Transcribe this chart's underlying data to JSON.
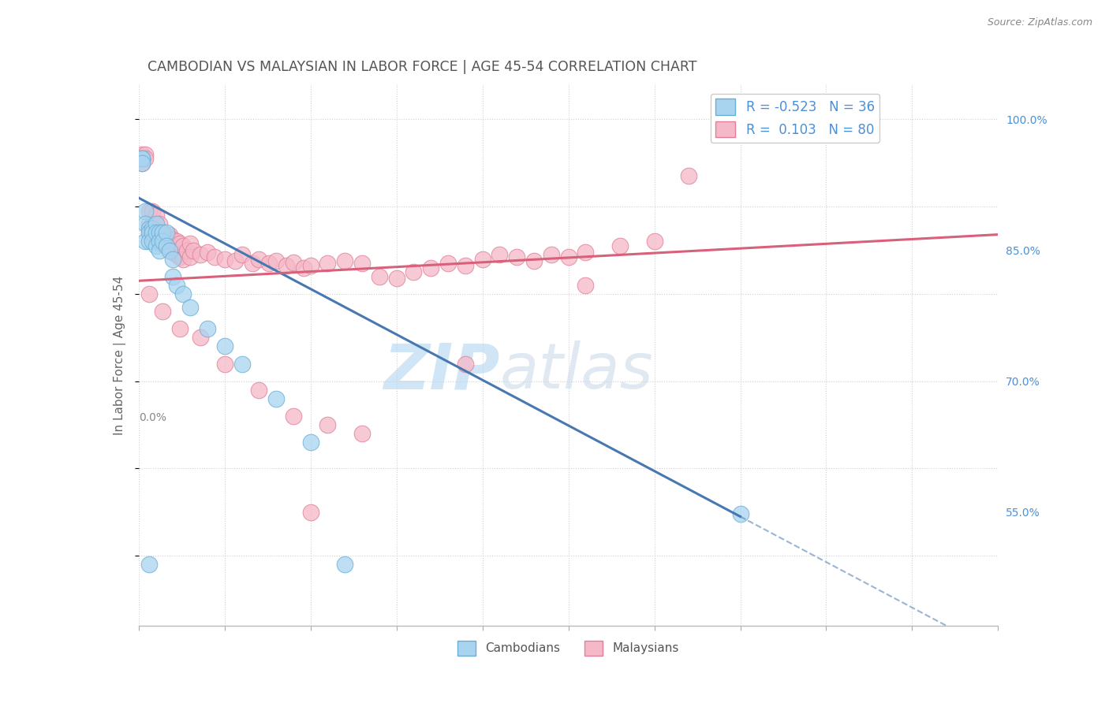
{
  "title": "CAMBODIAN VS MALAYSIAN IN LABOR FORCE | AGE 45-54 CORRELATION CHART",
  "source": "Source: ZipAtlas.com",
  "ylabel": "In Labor Force | Age 45-54",
  "xlim": [
    0.0,
    0.25
  ],
  "ylim": [
    0.42,
    1.04
  ],
  "right_yticks": [
    1.0,
    0.85,
    0.7,
    0.55
  ],
  "right_ytick_labels": [
    "100.0%",
    "85.0%",
    "70.0%",
    "55.0%"
  ],
  "cambodian_R": -0.523,
  "cambodian_N": 36,
  "malaysian_R": 0.103,
  "malaysian_N": 80,
  "cambodian_color": "#A8D4F0",
  "cambodian_edge": "#6AAED6",
  "malaysian_color": "#F5B8C8",
  "malaysian_edge": "#E08098",
  "trend_cambodian_color": "#4878B0",
  "trend_malaysian_color": "#D9607A",
  "background_color": "#FFFFFF",
  "grid_color": "#CCCCCC",
  "cam_trend_x0": 0.0,
  "cam_trend_y0": 0.91,
  "cam_trend_x1": 0.175,
  "cam_trend_y1": 0.545,
  "cam_trend_solid_end": 0.175,
  "mal_trend_x0": 0.0,
  "mal_trend_y0": 0.815,
  "mal_trend_x1": 0.25,
  "mal_trend_y1": 0.868,
  "cambodian_x": [
    0.001,
    0.001,
    0.001,
    0.002,
    0.002,
    0.002,
    0.003,
    0.003,
    0.003,
    0.004,
    0.004,
    0.004,
    0.005,
    0.005,
    0.005,
    0.006,
    0.006,
    0.006,
    0.007,
    0.007,
    0.008,
    0.008,
    0.009,
    0.01,
    0.01,
    0.011,
    0.013,
    0.015,
    0.02,
    0.025,
    0.03,
    0.04,
    0.05,
    0.06,
    0.003,
    0.175
  ],
  "cambodian_y": [
    0.955,
    0.955,
    0.95,
    0.895,
    0.88,
    0.86,
    0.875,
    0.87,
    0.86,
    0.875,
    0.87,
    0.86,
    0.88,
    0.87,
    0.855,
    0.87,
    0.86,
    0.85,
    0.87,
    0.86,
    0.87,
    0.855,
    0.85,
    0.84,
    0.82,
    0.81,
    0.8,
    0.785,
    0.76,
    0.74,
    0.72,
    0.68,
    0.63,
    0.49,
    0.49,
    0.548
  ],
  "malaysian_x": [
    0.001,
    0.001,
    0.002,
    0.002,
    0.003,
    0.003,
    0.003,
    0.004,
    0.004,
    0.004,
    0.005,
    0.005,
    0.005,
    0.006,
    0.006,
    0.006,
    0.007,
    0.007,
    0.008,
    0.008,
    0.009,
    0.009,
    0.01,
    0.01,
    0.011,
    0.011,
    0.012,
    0.012,
    0.013,
    0.013,
    0.014,
    0.015,
    0.015,
    0.016,
    0.018,
    0.02,
    0.022,
    0.025,
    0.028,
    0.03,
    0.033,
    0.035,
    0.038,
    0.04,
    0.043,
    0.045,
    0.048,
    0.05,
    0.055,
    0.06,
    0.065,
    0.07,
    0.075,
    0.08,
    0.085,
    0.09,
    0.095,
    0.1,
    0.105,
    0.11,
    0.115,
    0.12,
    0.125,
    0.13,
    0.14,
    0.15,
    0.003,
    0.007,
    0.012,
    0.018,
    0.025,
    0.035,
    0.045,
    0.055,
    0.065,
    0.2,
    0.16,
    0.13,
    0.095,
    0.05
  ],
  "malaysian_y": [
    0.96,
    0.95,
    0.96,
    0.955,
    0.895,
    0.88,
    0.87,
    0.895,
    0.88,
    0.87,
    0.89,
    0.875,
    0.865,
    0.88,
    0.87,
    0.858,
    0.87,
    0.858,
    0.868,
    0.855,
    0.868,
    0.852,
    0.862,
    0.848,
    0.86,
    0.845,
    0.858,
    0.842,
    0.855,
    0.84,
    0.85,
    0.858,
    0.842,
    0.85,
    0.845,
    0.848,
    0.842,
    0.84,
    0.838,
    0.845,
    0.835,
    0.84,
    0.835,
    0.838,
    0.832,
    0.836,
    0.83,
    0.832,
    0.835,
    0.838,
    0.835,
    0.82,
    0.818,
    0.825,
    0.83,
    0.835,
    0.832,
    0.84,
    0.845,
    0.842,
    0.838,
    0.845,
    0.842,
    0.848,
    0.855,
    0.86,
    0.8,
    0.78,
    0.76,
    0.75,
    0.72,
    0.69,
    0.66,
    0.65,
    0.64,
    1.0,
    0.935,
    0.81,
    0.72,
    0.55
  ]
}
